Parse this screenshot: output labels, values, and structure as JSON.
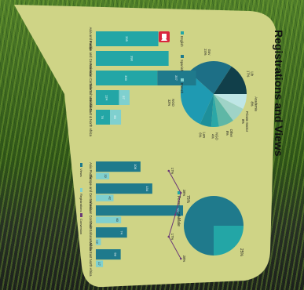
{
  "title": "Registrations and Views",
  "colors": {
    "bubble": "#cfd486",
    "teal_dark": "#1f7a8c",
    "teal_mid": "#23a6a6",
    "teal_light": "#7fd0cf",
    "purple": "#6b3a78"
  },
  "decor": {
    "logo": "video-app-icon"
  },
  "chart_data": [
    {
      "type": "pie",
      "title": "",
      "slices": [
        {
          "label": "Academia",
          "value": 8
        },
        {
          "label": "Private Sector",
          "value": 8
        },
        {
          "label": "Other",
          "value": 8
        },
        {
          "label": "NGO",
          "value": 4
        },
        {
          "label": "Law",
          "value": 6
        },
        {
          "label": "NGO",
          "value": 32
        },
        {
          "label": "Gov",
          "value": 24
        },
        {
          "label": "Lib",
          "value": 17
        }
      ]
    },
    {
      "type": "bar",
      "title": "",
      "categories": [
        "Asia and Pacific",
        "Europe and Central Asia",
        "Americas Continent",
        "Sub-Saharan Africa",
        "Middle East & North Africa"
      ],
      "series": [
        {
          "name": "English",
          "values": [
            335,
            390,
            330,
            124,
            76
          ]
        },
        {
          "name": "Spanish",
          "values": [
            0,
            0,
            207,
            0,
            0
          ]
        },
        {
          "name": "French",
          "values": [
            0,
            0,
            0,
            57,
            59
          ]
        }
      ]
    },
    {
      "type": "pie",
      "title": "",
      "slices": [
        {
          "label": "Female",
          "value": 25
        },
        {
          "label": "Male",
          "value": 75
        }
      ],
      "legend": [
        "Female",
        "Male"
      ],
      "labels_shown": [
        "25%",
        "75%"
      ]
    },
    {
      "type": "bar",
      "title": "",
      "categories": [
        "Asia Pacific",
        "Europe and Central Asia",
        "American Continent",
        "Sub-Saharan Africa",
        "Middle East North Africa"
      ],
      "series": [
        {
          "name": "Views",
          "values": [
            106,
            134,
            207,
            74,
            59
          ]
        },
        {
          "name": "Registrations",
          "values": [
            32,
            42,
            60,
            12,
            17
          ]
        },
        {
          "name": "Conversion",
          "values": [
            17,
            28,
            23,
            17,
            28
          ],
          "labels": [
            "17%",
            "28%",
            "23%",
            "17%",
            "28%"
          ]
        }
      ],
      "legend": [
        "Views",
        "Registrations",
        "Conversion"
      ]
    }
  ]
}
